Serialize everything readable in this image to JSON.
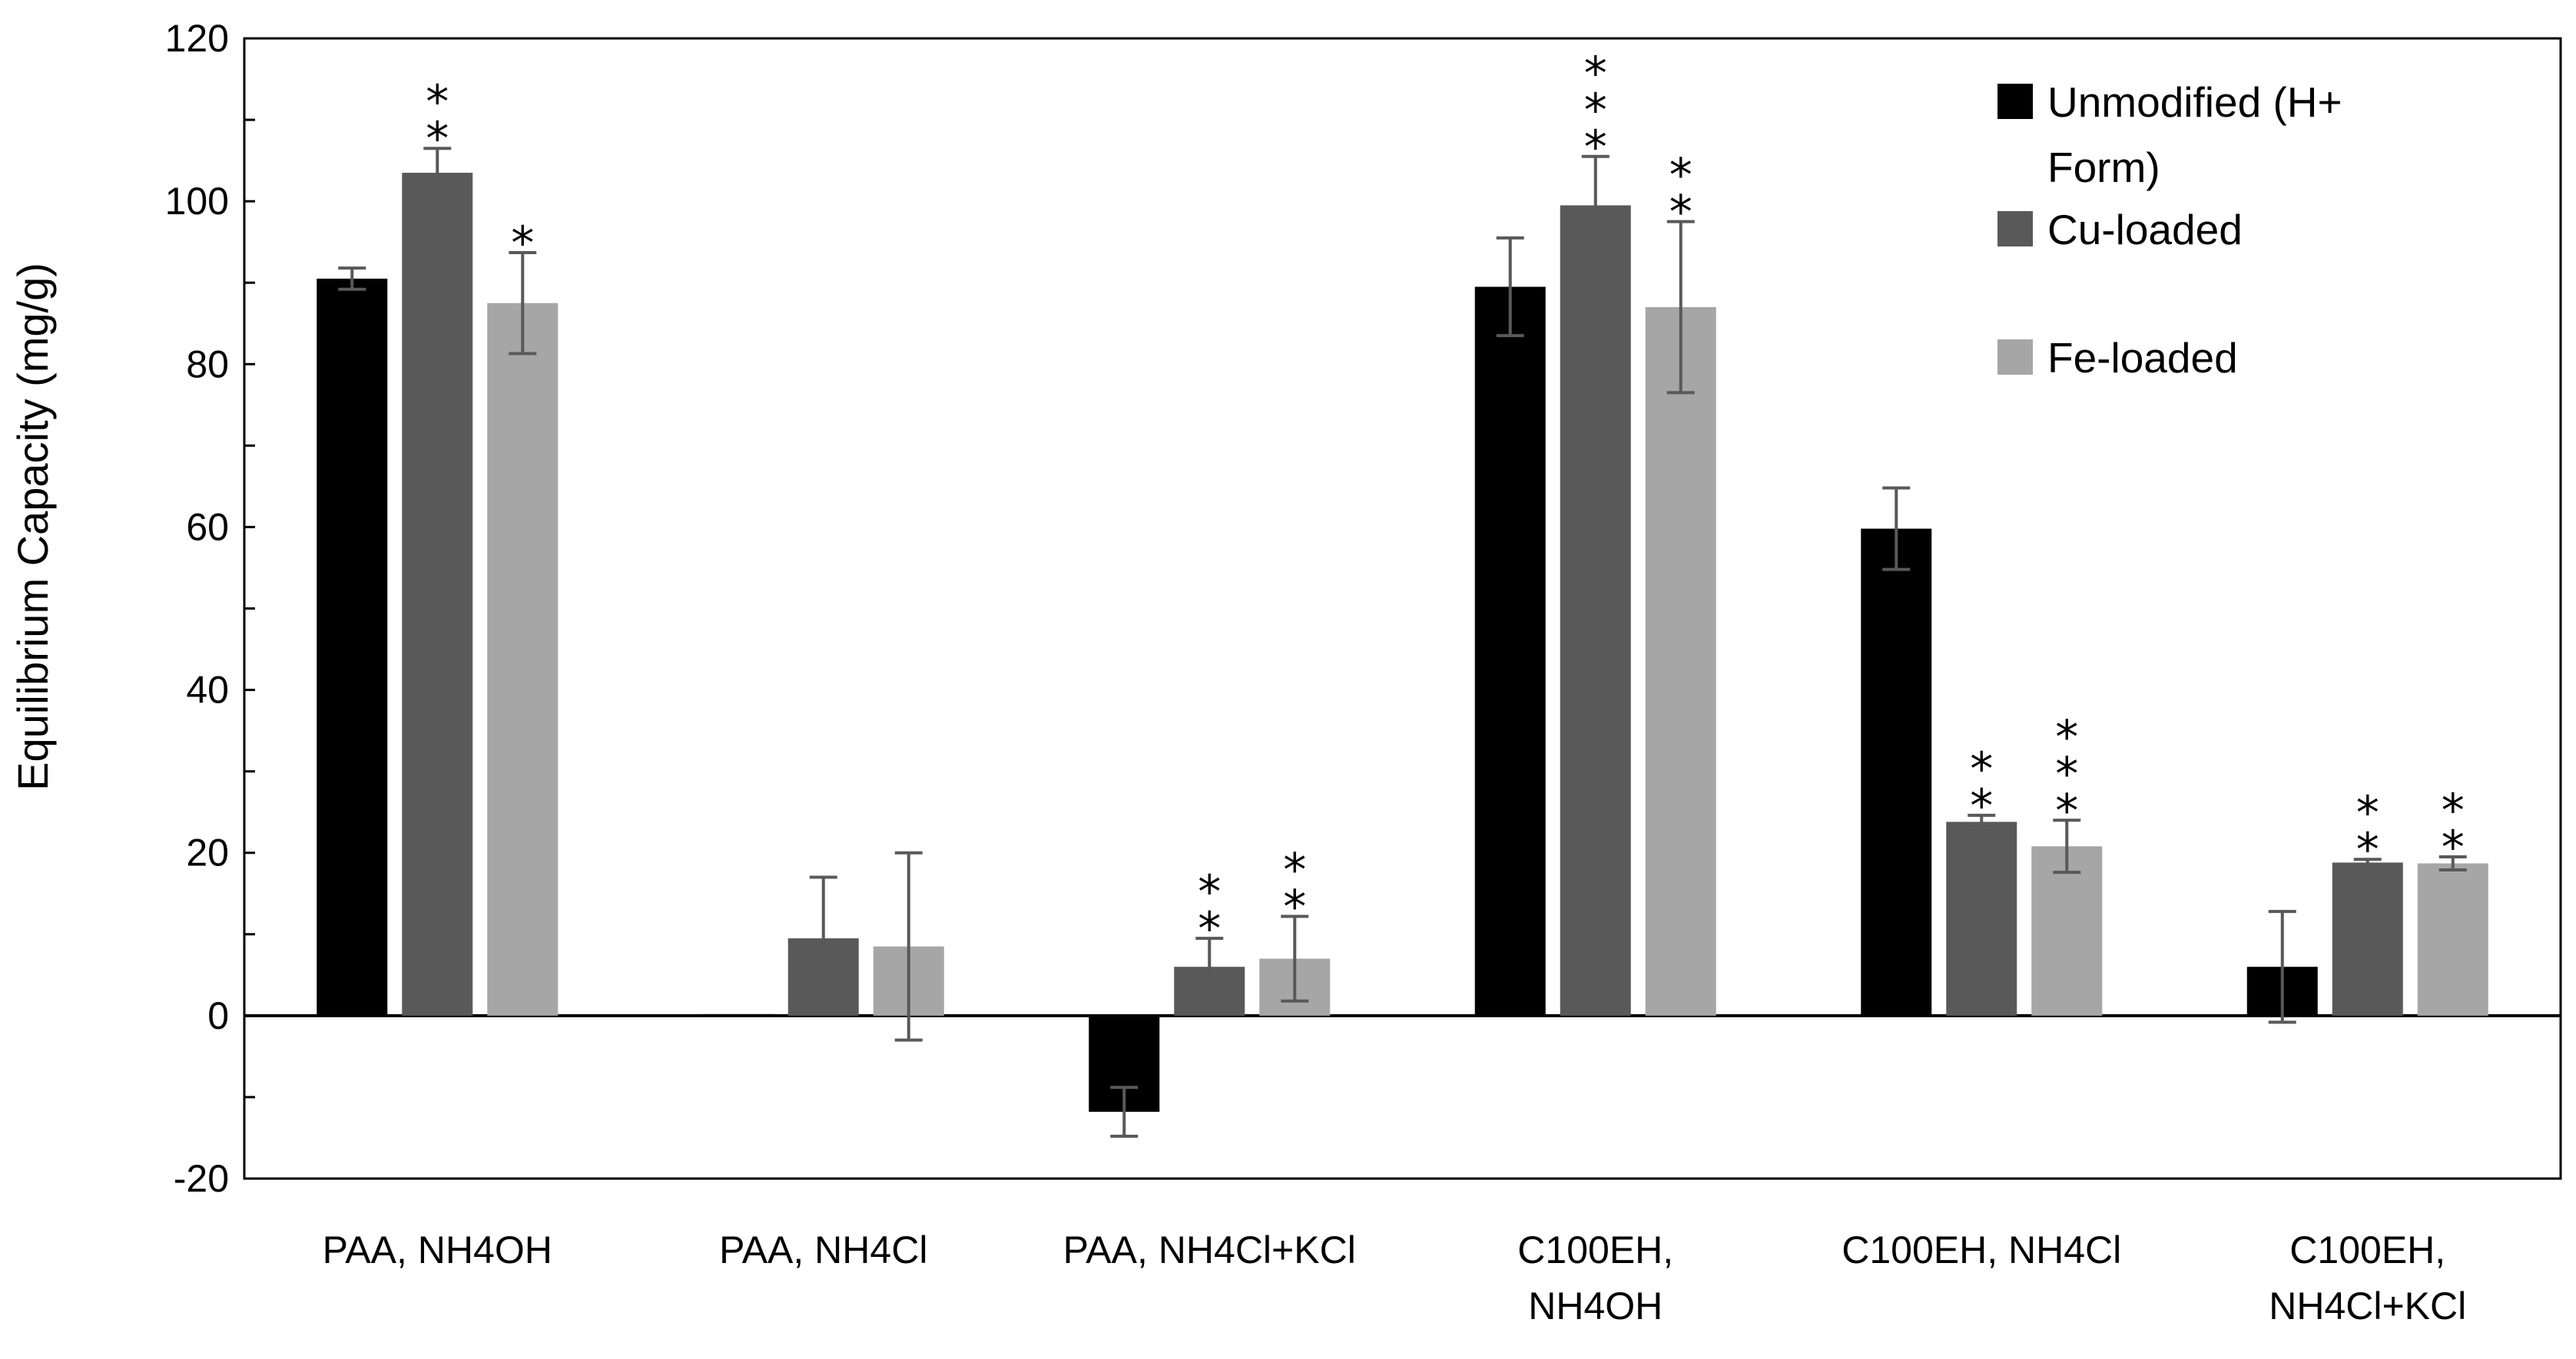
{
  "chart_data": {
    "type": "bar",
    "title": "",
    "xlabel": "",
    "ylabel": "Equilibrium Capacity (mg/g)",
    "ylim": [
      -20,
      120
    ],
    "yticks": [
      "120",
      "100",
      "80",
      "60",
      "40",
      "20",
      "0",
      "-20"
    ],
    "categories": [
      [
        "PAA, NH4OH"
      ],
      [
        "PAA, NH4Cl"
      ],
      [
        "PAA, NH4Cl+KCl"
      ],
      [
        "C100EH,",
        "NH4OH"
      ],
      [
        "C100EH, NH4Cl"
      ],
      [
        "C100EH,",
        "NH4Cl+KCl"
      ]
    ],
    "legend_position": "top-right",
    "series": [
      {
        "name": "Unmodified (H+ Form)",
        "legend_lines": [
          "Unmodified (H+",
          "Form)"
        ],
        "color": "#000000",
        "values": [
          90.5,
          0,
          -11.8,
          89.5,
          59.8,
          6
        ],
        "errors": [
          1.3,
          0,
          3,
          6,
          5,
          6.8
        ],
        "significance": [
          "",
          "",
          "",
          "",
          "",
          ""
        ]
      },
      {
        "name": "Cu-loaded",
        "legend_lines": [
          "Cu-loaded"
        ],
        "color": "#595959",
        "values": [
          103.5,
          9.5,
          6,
          99.5,
          23.8,
          18.8
        ],
        "errors": [
          3,
          7.5,
          3.5,
          6,
          0.8,
          0.4
        ],
        "significance": [
          "**",
          "",
          "**",
          "***",
          "**",
          "**"
        ]
      },
      {
        "name": "Fe-loaded",
        "legend_lines": [
          "Fe-loaded"
        ],
        "color": "#A6A6A6",
        "values": [
          87.5,
          8.5,
          7,
          87,
          20.8,
          18.7
        ],
        "errors": [
          6.2,
          11.5,
          5.2,
          10.5,
          3.2,
          0.8
        ],
        "significance": [
          "*",
          "",
          "**",
          "**",
          "***",
          "**"
        ]
      }
    ]
  }
}
